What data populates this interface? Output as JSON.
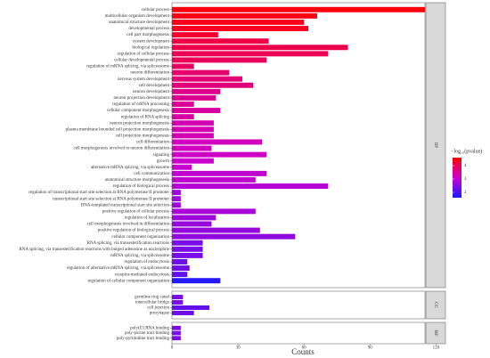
{
  "chart_data": {
    "type": "bar",
    "orientation": "horizontal",
    "xlabel": "Counts",
    "xlim": [
      0,
      115
    ],
    "xticks": [
      0,
      30,
      60,
      90,
      120
    ],
    "color_title": "−log₁₀(pvalue)",
    "color_lim": [
      1.6,
      4.6
    ],
    "color_ticks": [
      2,
      3,
      4
    ],
    "color_scale": [
      "#1a1aff",
      "#cc00cc",
      "#ff0000"
    ],
    "facets": [
      {
        "name": "BP",
        "categories": [
          "cellular process",
          "multicellular organism development",
          "anatomical structure development",
          "developmental process",
          "cell part morphogenesis",
          "system development",
          "biological regulation",
          "regulation of cellular process",
          "cellular developmental process",
          "regulation of mRNA splicing, via spliceosome",
          "neuron differentiation",
          "nervous system development",
          "cell development",
          "neuron development",
          "neuron projection development",
          "regulation of mRNA processing",
          "cellular component morphogenesis",
          "regulation of RNA splicing",
          "neuron projection morphogenesis",
          "plasma membrane bounded cell projection morphogenesis",
          "cell projection morphogenesis",
          "cell differentiation",
          "cell morphogenesis involved in neuron differentiation",
          "signaling",
          "growth",
          "alternative mRNA splicing, via spliceosome",
          "cell communication",
          "anatomical structure morphogenesis",
          "regulation of biological process",
          "regulation of transcriptional start site selection at RNA polymerase II promoter",
          "transcriptional start site selection at RNA polymerase II promoter",
          "DNA-templated transcriptional start site selection",
          "positive regulation of cellular process",
          "regulation of localization",
          "cell morphogenesis involved in differentiation",
          "positive regulation of biological process",
          "cellular component organization",
          "RNA splicing, via transesterification reactions",
          "RNA splicing, via transesterification reactions with bulged adenosine as nucleophile",
          "mRNA splicing, via spliceosome",
          "regulation of endocytosis",
          "regulation of alternative mRNA splicing, via spliceosome",
          "receptor-mediated endocytosis",
          "regulation of cellular component organization"
        ],
        "values": [
          115,
          66,
          60,
          62,
          21,
          44,
          80,
          71,
          43,
          10,
          26,
          32,
          37,
          22,
          20,
          10,
          22,
          10,
          19,
          19,
          19,
          41,
          18,
          43,
          19,
          9,
          43,
          38,
          71,
          4,
          4,
          4,
          38,
          20,
          18,
          40,
          56,
          14,
          14,
          14,
          7,
          8,
          7,
          22
        ],
        "scores": [
          4.5,
          4.45,
          4.4,
          4.35,
          4.25,
          4.1,
          4.05,
          4.0,
          3.95,
          3.9,
          3.8,
          3.75,
          3.7,
          3.6,
          3.55,
          3.5,
          3.45,
          3.4,
          3.3,
          3.3,
          3.3,
          3.2,
          3.2,
          3.15,
          3.1,
          3.05,
          3.0,
          3.0,
          2.9,
          2.7,
          2.7,
          2.7,
          2.8,
          2.7,
          2.65,
          2.65,
          2.6,
          2.4,
          2.4,
          2.4,
          2.3,
          2.3,
          2.2,
          1.7
        ]
      },
      {
        "name": "CC",
        "categories": [
          "germline ring canal",
          "intercellular bridge",
          "cell junction",
          "presynapse"
        ],
        "values": [
          5,
          5,
          17,
          10
        ],
        "scores": [
          2.4,
          2.4,
          2.2,
          2.3
        ]
      },
      {
        "name": "MF",
        "categories": [
          "poly(U) RNA binding",
          "poly-purine tract binding",
          "poly-pyrimidine tract binding"
        ],
        "values": [
          4,
          4,
          4
        ],
        "scores": [
          2.4,
          2.4,
          2.4
        ]
      }
    ]
  }
}
